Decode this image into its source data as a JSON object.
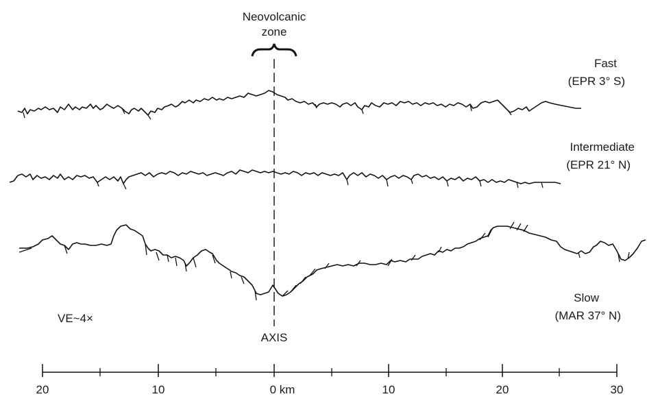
{
  "labels": {
    "neovolcanic_line1": "Neovolcanic",
    "neovolcanic_line2": "zone",
    "axis": "AXIS",
    "vertical_exaggeration": "VE~4×"
  },
  "profiles": [
    {
      "key": "fast",
      "rate": "Fast",
      "location": "(EPR 3° S)"
    },
    {
      "key": "intermediate",
      "rate": "Intermediate",
      "location": "(EPR 21° N)"
    },
    {
      "key": "slow",
      "rate": "Slow",
      "location": "(MAR 37° N)"
    }
  ],
  "scale": {
    "ticks": [
      "20",
      "10",
      "0 km",
      "10",
      "20",
      "30"
    ]
  },
  "colors": {
    "ink": "#111111",
    "background": "#ffffff"
  }
}
